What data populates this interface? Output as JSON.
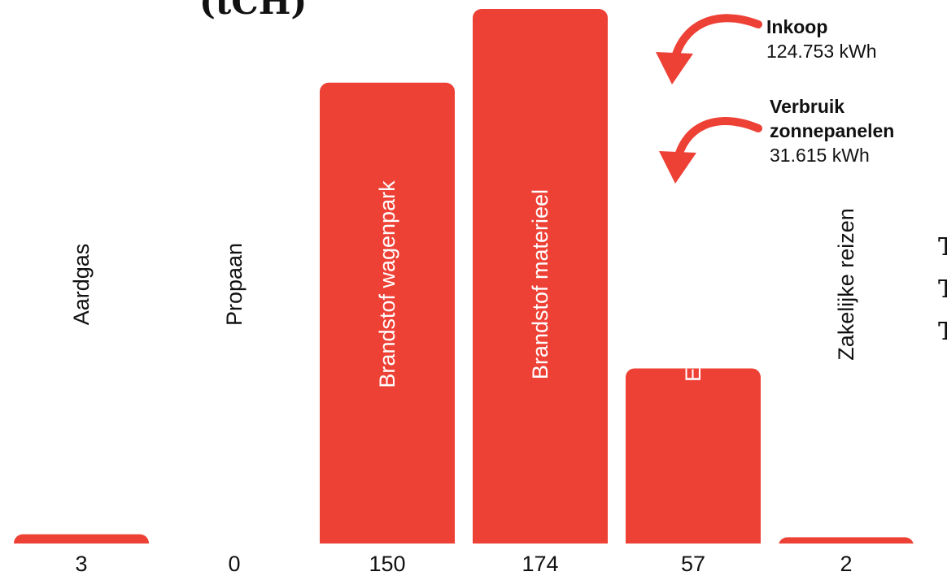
{
  "unit_label": "(tCH)",
  "colors": {
    "bar": "#ee4136",
    "text": "#111111",
    "background": "#ffffff"
  },
  "annotations": {
    "inkoop": {
      "title": "Inkoop",
      "value": "124.753 kWh",
      "icon": "curved-arrow-icon"
    },
    "zonnepanelen": {
      "title": "Verbruik zonnepanelen",
      "value": "31.615 kWh",
      "icon": "curved-arrow-icon"
    }
  },
  "side_letters": [
    "T",
    "T",
    "T"
  ],
  "chart_data": {
    "type": "bar",
    "title": "",
    "xlabel": "",
    "ylabel": "",
    "categories": [
      "Aardgas",
      "Propaan",
      "Brandstof wagenpark",
      "Brandstof materieel",
      "Elektriciteitsverbruik",
      "Zakelijke reizen"
    ],
    "values": [
      3,
      0,
      150,
      174,
      57,
      2
    ],
    "data_labels": [
      "3",
      "0",
      "150",
      "174",
      "57",
      "2"
    ],
    "ylim": [
      0,
      174
    ],
    "grid": false,
    "legend": "none"
  }
}
